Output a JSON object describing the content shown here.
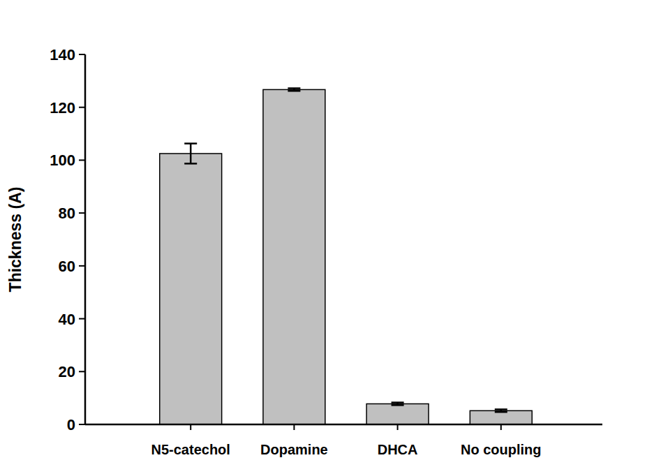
{
  "chart_data": {
    "type": "bar",
    "y_label": "Thickness (A)",
    "categories": [
      "N5-catechol",
      "Dopamine",
      "DHCA",
      "No coupling"
    ],
    "values": [
      102.5,
      126.7,
      7.8,
      5.2
    ],
    "errors": [
      3.8,
      0.5,
      0.5,
      0.5
    ],
    "color": "#c0c0c0",
    "ylim": [
      0,
      140
    ],
    "yticks": [
      0,
      20,
      40,
      60,
      80,
      100,
      120,
      140
    ]
  }
}
